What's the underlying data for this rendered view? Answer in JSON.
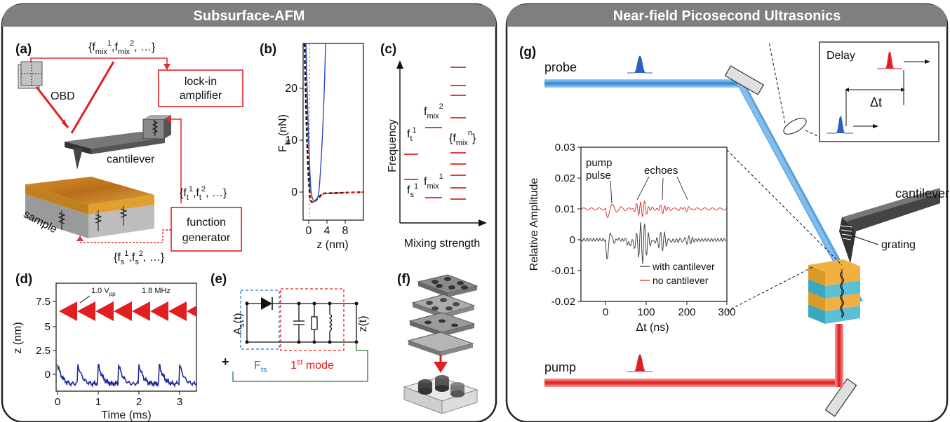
{
  "left_panel": {
    "title": "Subsurface-AFM",
    "panel_a": {
      "label": "(a)",
      "fmix_set": "{f",
      "fmix_sub": "mix",
      "fmix_rest": ", …}",
      "lockin_1": "lock-in",
      "lockin_2": "amplifier",
      "obd": "OBD",
      "cantilever": "cantilever",
      "sample": "sample",
      "ft_set": "{f",
      "ft_rest": ", …}",
      "fs_set": "{f",
      "fs_rest": ", …}",
      "sub_t": "t",
      "sub_s": "s",
      "sup1": "1",
      "sup2": "2",
      "funcgen_1": "function",
      "funcgen_2": "generator"
    },
    "panel_b": {
      "label": "(b)",
      "ylabel": "F",
      "ylabel_sub": "ts",
      "ylabel_unit": " (nN)",
      "xlabel": "z (nm)",
      "yticks": [
        "20",
        "10",
        "0"
      ],
      "xticks": [
        "0",
        "4",
        "8"
      ]
    },
    "panel_c": {
      "label": "(c)",
      "ylabel": "Frequency",
      "xlabel": "Mixing strength",
      "ft": "f",
      "ft_sub": "t",
      "fs": "f",
      "fs_sub": "s",
      "fmix": "f",
      "fmix_sub": "mix",
      "fmixn": "{f",
      "fmixn_sub": "mix",
      "fmixn_sup": "n",
      "fmixn_close": "}",
      "sup1": "1",
      "sup2": "2"
    },
    "panel_d": {
      "label": "(d)",
      "ylabel": "z (nm)",
      "xlabel": "Time (ms)",
      "vpp": "1.0 V",
      "vpp_sub": "pp",
      "freq": "1.8 MHz",
      "yticks": [
        "7.5",
        "5",
        "2.5",
        "0"
      ],
      "xticks": [
        "0",
        "1",
        "2",
        "3"
      ]
    },
    "panel_e": {
      "label": "(e)",
      "as": "A",
      "as_sub": "s",
      "as_t": "(t)",
      "zt": "z(t)",
      "fts": "F",
      "fts_sub": "ts",
      "mode_1": "1",
      "mode_sup": "st",
      "mode_2": " mode",
      "plus": "+"
    },
    "panel_f": {
      "label": "(f)"
    }
  },
  "right_panel": {
    "title": "Near-field Picosecond Ultrasonics",
    "label": "(g)",
    "probe": "probe",
    "pump": "pump",
    "delay": "Delay",
    "delta_t": "Δt",
    "cantilever": "cantilever",
    "grating": "grating",
    "plot": {
      "ylabel": "Relative Amplitude",
      "xlabel": "Δt (ns)",
      "yticks": [
        "0.03",
        "0.02",
        "0.01",
        "0",
        "-0.01",
        "-0.02"
      ],
      "xticks": [
        "0",
        "100",
        "200",
        "300"
      ],
      "ann_pump_1": "pump",
      "ann_pump_2": "pulse",
      "ann_echoes": "echoes",
      "legend_with": "with cantilever",
      "legend_no": "no cantilever"
    }
  },
  "colors": {
    "header_bg": "#7f7f7f",
    "laser_blue": "#3a8fd8",
    "laser_red": "#e02020",
    "wire_red": "#e03030",
    "trace_navy": "#1f2a9a"
  }
}
